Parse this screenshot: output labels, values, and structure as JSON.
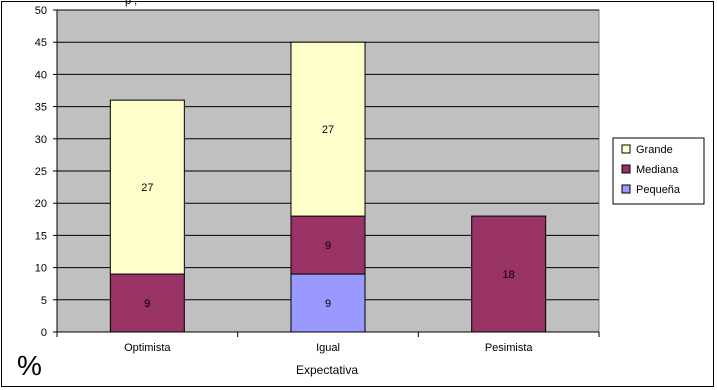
{
  "chart_data": {
    "type": "bar",
    "stacked": true,
    "title": "",
    "xlabel": "Expectativa",
    "ylabel": "%",
    "ylim": [
      0,
      50
    ],
    "y_ticks": [
      0,
      5,
      10,
      15,
      20,
      25,
      30,
      35,
      40,
      45,
      50
    ],
    "categories": [
      "Optimista",
      "Igual",
      "Pesimista"
    ],
    "series": [
      {
        "name": "Pequeña",
        "values": [
          0,
          9,
          0
        ],
        "color": "#9999ff"
      },
      {
        "name": "Mediana",
        "values": [
          9,
          9,
          18
        ],
        "color": "#993366"
      },
      {
        "name": "Grande",
        "values": [
          27,
          27,
          0
        ],
        "color": "#ffffcc"
      }
    ],
    "legend_order": [
      "Grande",
      "Mediana",
      "Pequeña"
    ],
    "legend_position": "right",
    "grid": true,
    "plot_background": "#c0c0c0",
    "title_partial": "p , "
  }
}
